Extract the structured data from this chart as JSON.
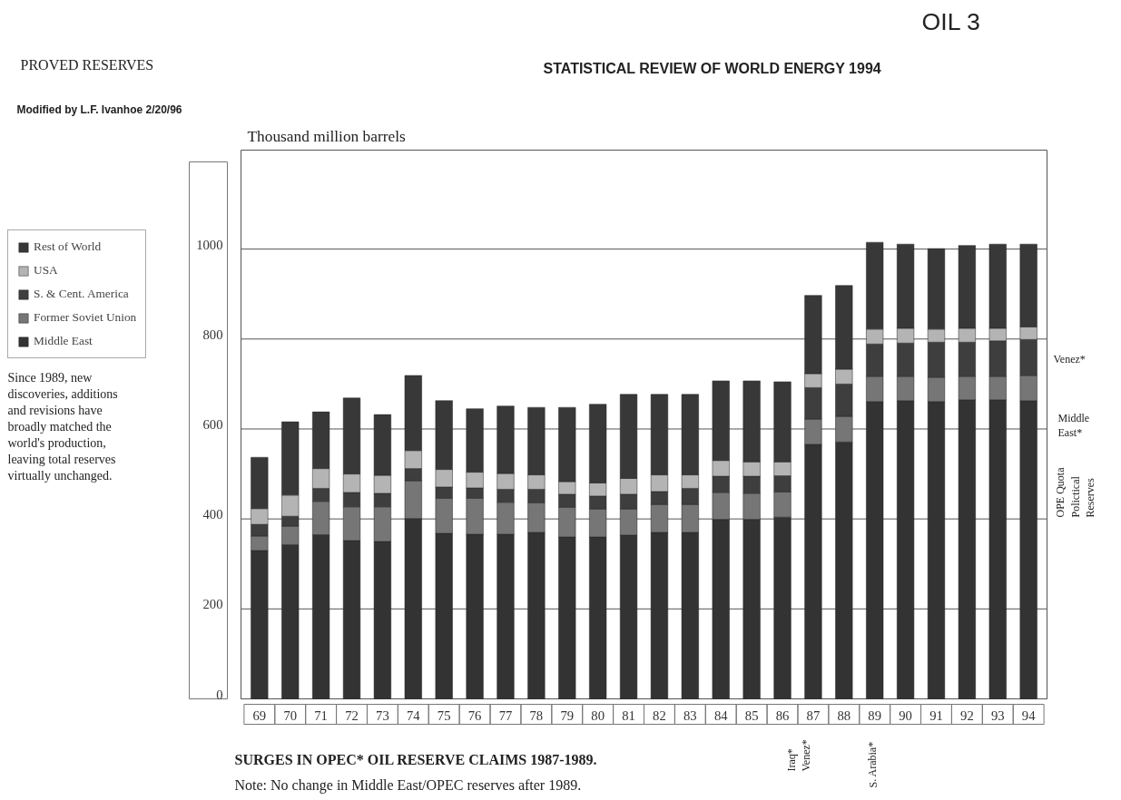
{
  "chart_data": {
    "type": "bar",
    "stacked": true,
    "title": "PROVED RESERVES",
    "subtitle": "STATISTICAL REVIEW OF WORLD ENERGY 1994",
    "ylabel": "Thousand million barrels",
    "categories": [
      "69",
      "70",
      "71",
      "72",
      "73",
      "74",
      "75",
      "76",
      "77",
      "78",
      "79",
      "80",
      "81",
      "82",
      "83",
      "84",
      "85",
      "86",
      "87",
      "88",
      "89",
      "90",
      "91",
      "92",
      "93",
      "94"
    ],
    "series": [
      {
        "name": "Middle East",
        "color": "#333333",
        "values": [
          330,
          343,
          365,
          352,
          350,
          401,
          368,
          366,
          366,
          370,
          360,
          360,
          364,
          370,
          370,
          399,
          399,
          404,
          566,
          571,
          661,
          663,
          661,
          665,
          665,
          663
        ]
      },
      {
        "name": "Former Soviet Union",
        "color": "#767676",
        "values": [
          32,
          41,
          74,
          75,
          77,
          84,
          78,
          80,
          71,
          66,
          66,
          62,
          58,
          62,
          62,
          60,
          58,
          56,
          56,
          57,
          56,
          54,
          54,
          52,
          52,
          56
        ]
      },
      {
        "name": "S. & Cent. America",
        "color": "#3e3e3e",
        "values": [
          26,
          22,
          29,
          32,
          30,
          27,
          25,
          23,
          29,
          30,
          29,
          29,
          33,
          29,
          36,
          36,
          38,
          36,
          70,
          72,
          72,
          74,
          78,
          76,
          79,
          80
        ]
      },
      {
        "name": "USA",
        "color": "#b4b4b4",
        "values": [
          35,
          47,
          44,
          41,
          40,
          40,
          39,
          35,
          35,
          32,
          28,
          29,
          35,
          37,
          30,
          35,
          32,
          31,
          31,
          33,
          33,
          33,
          29,
          31,
          28,
          28
        ]
      },
      {
        "name": "Rest of World",
        "color": "#383838",
        "values": [
          114,
          163,
          126,
          169,
          135,
          167,
          153,
          141,
          150,
          150,
          165,
          175,
          187,
          179,
          179,
          177,
          180,
          178,
          174,
          186,
          193,
          187,
          179,
          184,
          187,
          184
        ]
      }
    ],
    "ylim": [
      0,
      1220
    ],
    "yticks": [
      0,
      200,
      400,
      600,
      800,
      1000
    ],
    "grid": "y",
    "legend": "left",
    "annotations": [
      "OIL 3",
      "Modified by L.F. Ivanhoe 2/20/96",
      "Since 1989, new discoveries, additions and revisions have broadly matched the world's production, leaving total reserves virtually unchanged.",
      "SURGES IN OPEC* OIL RESERVE CLAIMS 1987-1989.",
      "Note: No change in Middle East/OPEC reserves after 1989.",
      "Iraq* Venez*",
      "S. Arabia*",
      "Venez*",
      "Middle East*",
      "OPE Quota Polictical Reserves"
    ]
  }
}
